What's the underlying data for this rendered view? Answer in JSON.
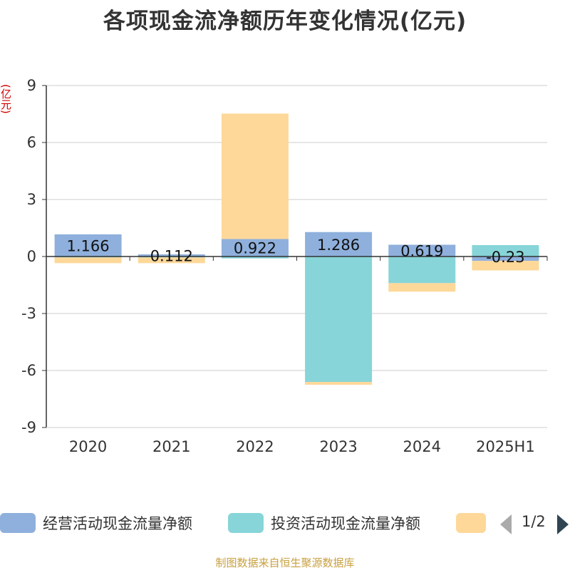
{
  "chart_data": {
    "type": "bar",
    "stacked": true,
    "title": "各项现金流净额历年变化情况(亿元)",
    "ylabel": "(亿元)",
    "ylim": [
      -9,
      9
    ],
    "yticks": [
      9,
      6,
      3,
      0,
      -3,
      -6,
      -9
    ],
    "grid": true,
    "categories": [
      "2020",
      "2021",
      "2022",
      "2023",
      "2024",
      "2025H1"
    ],
    "series": [
      {
        "name": "经营活动现金流量净额",
        "color": "#8fb0dc",
        "values": [
          1.166,
          0.112,
          0.922,
          1.286,
          0.619,
          -0.23
        ],
        "labels": [
          "1.166",
          "0.112",
          "0.922",
          "1.286",
          "0.619",
          "-0.23"
        ]
      },
      {
        "name": "投资活动现金流量净额",
        "color": "#87d5d8",
        "values": [
          -0.05,
          -0.05,
          -0.1,
          -6.6,
          -1.4,
          0.6
        ]
      },
      {
        "name": "",
        "color": "#fdd899",
        "values": [
          -0.3,
          -0.3,
          6.6,
          -0.15,
          -0.45,
          -0.5
        ]
      }
    ],
    "legend": {
      "position": "bottom",
      "page": "1/2"
    }
  },
  "source": "制图数据来自恒生聚源数据库"
}
